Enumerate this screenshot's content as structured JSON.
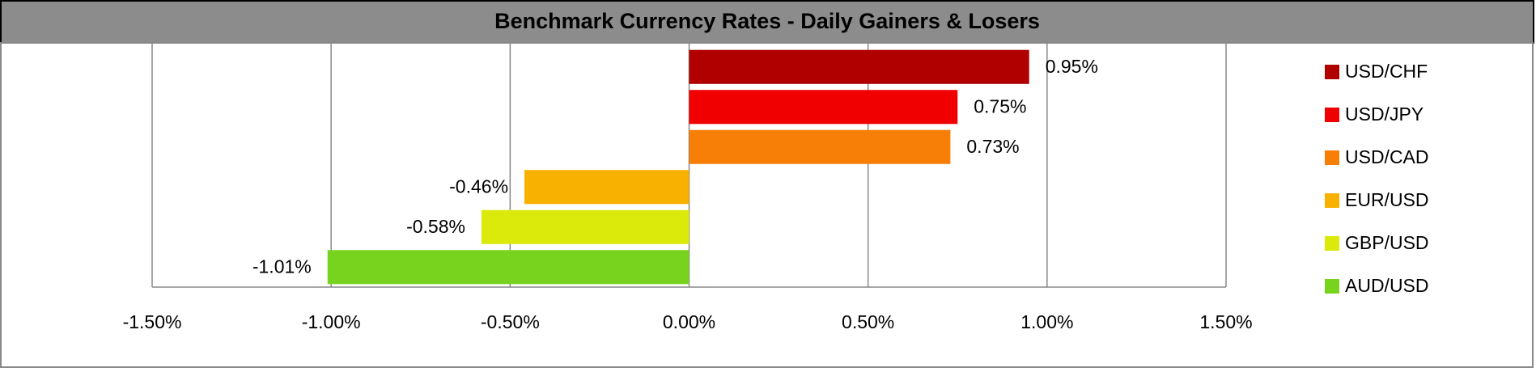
{
  "chart_data": {
    "type": "barh",
    "title": "Benchmark Currency Rates - Daily Gainers & Losers",
    "categories": [
      "USD/CHF",
      "USD/JPY",
      "USD/CAD",
      "EUR/USD",
      "GBP/USD",
      "AUD/USD"
    ],
    "values": [
      0.95,
      0.75,
      0.73,
      -0.46,
      -0.58,
      -1.01
    ],
    "value_labels": [
      "0.95%",
      "0.75%",
      "0.73%",
      "-0.46%",
      "-0.58%",
      "-1.01%"
    ],
    "colors": [
      "#b00000",
      "#f00000",
      "#f77f07",
      "#f9b100",
      "#dbea0a",
      "#78d31f"
    ],
    "xlim": [
      -1.5,
      1.5
    ],
    "xticks": [
      {
        "value": -1.5,
        "label": "-1.50%"
      },
      {
        "value": -1.0,
        "label": "-1.00%"
      },
      {
        "value": -0.5,
        "label": "-0.50%"
      },
      {
        "value": 0,
        "label": "0.00%"
      },
      {
        "value": 0.5,
        "label": "0.50%"
      },
      {
        "value": 1.0,
        "label": "1.00%"
      },
      {
        "value": 1.5,
        "label": "1.50%"
      }
    ],
    "grid": true,
    "legend": "right"
  }
}
